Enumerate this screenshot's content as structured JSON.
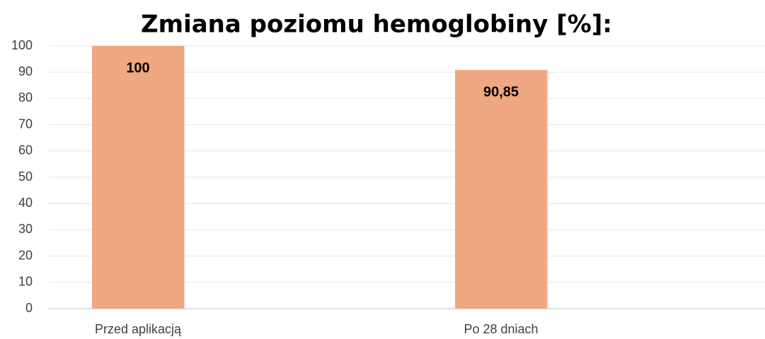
{
  "chart_data": {
    "type": "bar",
    "title": "Zmiana poziomu hemoglobiny [%]:",
    "categories": [
      "Przed aplikacją",
      "Po 28 dniach"
    ],
    "values": [
      100,
      90.85
    ],
    "value_labels": [
      "100",
      "90,85"
    ],
    "color": "#f0a882",
    "ylim": [
      0,
      100
    ],
    "yticks": [
      0,
      10,
      20,
      30,
      40,
      50,
      60,
      70,
      80,
      90,
      100
    ],
    "grid": true
  }
}
